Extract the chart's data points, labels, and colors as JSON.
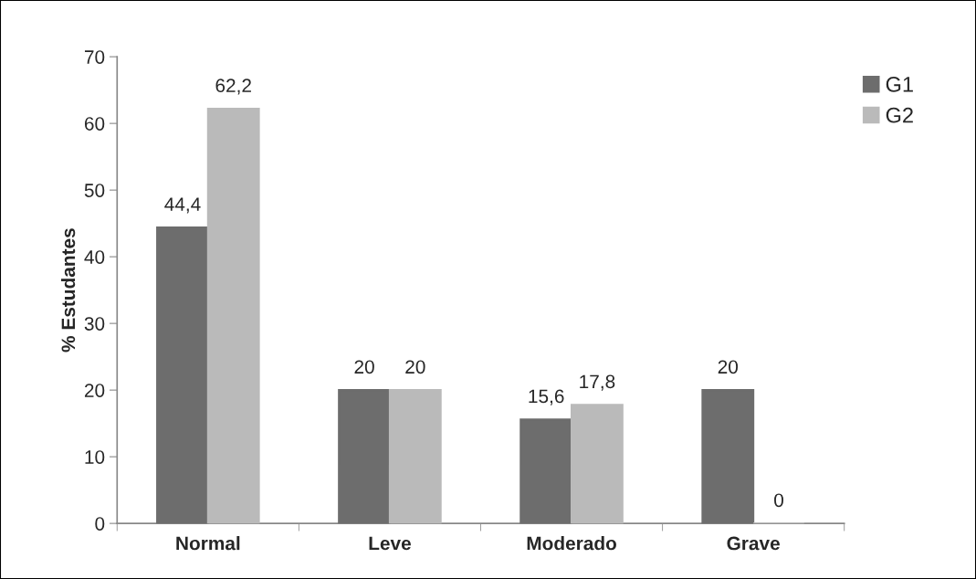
{
  "chart_data": {
    "type": "bar",
    "ylabel": "% Estudantes",
    "categories": [
      "Normal",
      "Leve",
      "Moderado",
      "Grave"
    ],
    "series": [
      {
        "name": "G1",
        "color": "#6d6d6d",
        "values": [
          44.4,
          20,
          15.6,
          20
        ],
        "value_labels": [
          "44,4",
          "20",
          "15,6",
          "20"
        ]
      },
      {
        "name": "G2",
        "color": "#bababa",
        "values": [
          62.2,
          20,
          17.8,
          0
        ],
        "value_labels": [
          "62,2",
          "20",
          "17,8",
          "0"
        ]
      }
    ],
    "ylim": [
      0,
      70
    ],
    "yticks": [
      0,
      10,
      20,
      30,
      40,
      50,
      60,
      70
    ],
    "grid": false,
    "legend": "top right"
  }
}
